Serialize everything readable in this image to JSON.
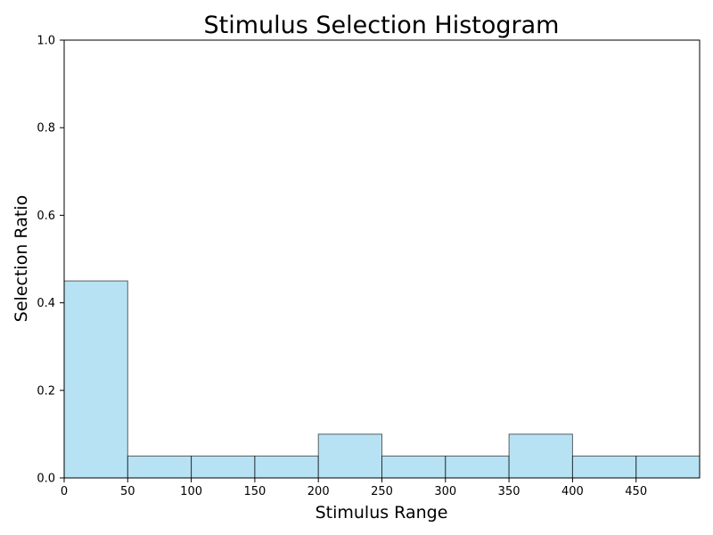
{
  "chart_data": {
    "type": "bar",
    "title": "Stimulus Selection Histogram",
    "xlabel": "Stimulus Range",
    "ylabel": "Selection Ratio",
    "xlim": [
      0,
      500
    ],
    "ylim": [
      0,
      1.0
    ],
    "bin_edges": [
      0,
      50,
      100,
      150,
      200,
      250,
      300,
      350,
      400,
      450,
      500
    ],
    "values": [
      0.45,
      0.05,
      0.05,
      0.05,
      0.1,
      0.05,
      0.05,
      0.1,
      0.05,
      0.05
    ],
    "bar_color": "#87ceeb",
    "edge_color": "#000000",
    "xticks": [
      {
        "value": 0,
        "label": "0"
      },
      {
        "value": 50,
        "label": "50"
      },
      {
        "value": 100,
        "label": "100"
      },
      {
        "value": 150,
        "label": "150"
      },
      {
        "value": 200,
        "label": "200"
      },
      {
        "value": 250,
        "label": "250"
      },
      {
        "value": 300,
        "label": "300"
      },
      {
        "value": 350,
        "label": "350"
      },
      {
        "value": 400,
        "label": "400"
      },
      {
        "value": 450,
        "label": "450"
      }
    ],
    "yticks": [
      {
        "value": 0.0,
        "label": "0.0"
      },
      {
        "value": 0.2,
        "label": "0.2"
      },
      {
        "value": 0.4,
        "label": "0.4"
      },
      {
        "value": 0.6,
        "label": "0.6"
      },
      {
        "value": 0.8,
        "label": "0.8"
      },
      {
        "value": 1.0,
        "label": "1.0"
      }
    ],
    "grid": false,
    "legend": "none"
  }
}
